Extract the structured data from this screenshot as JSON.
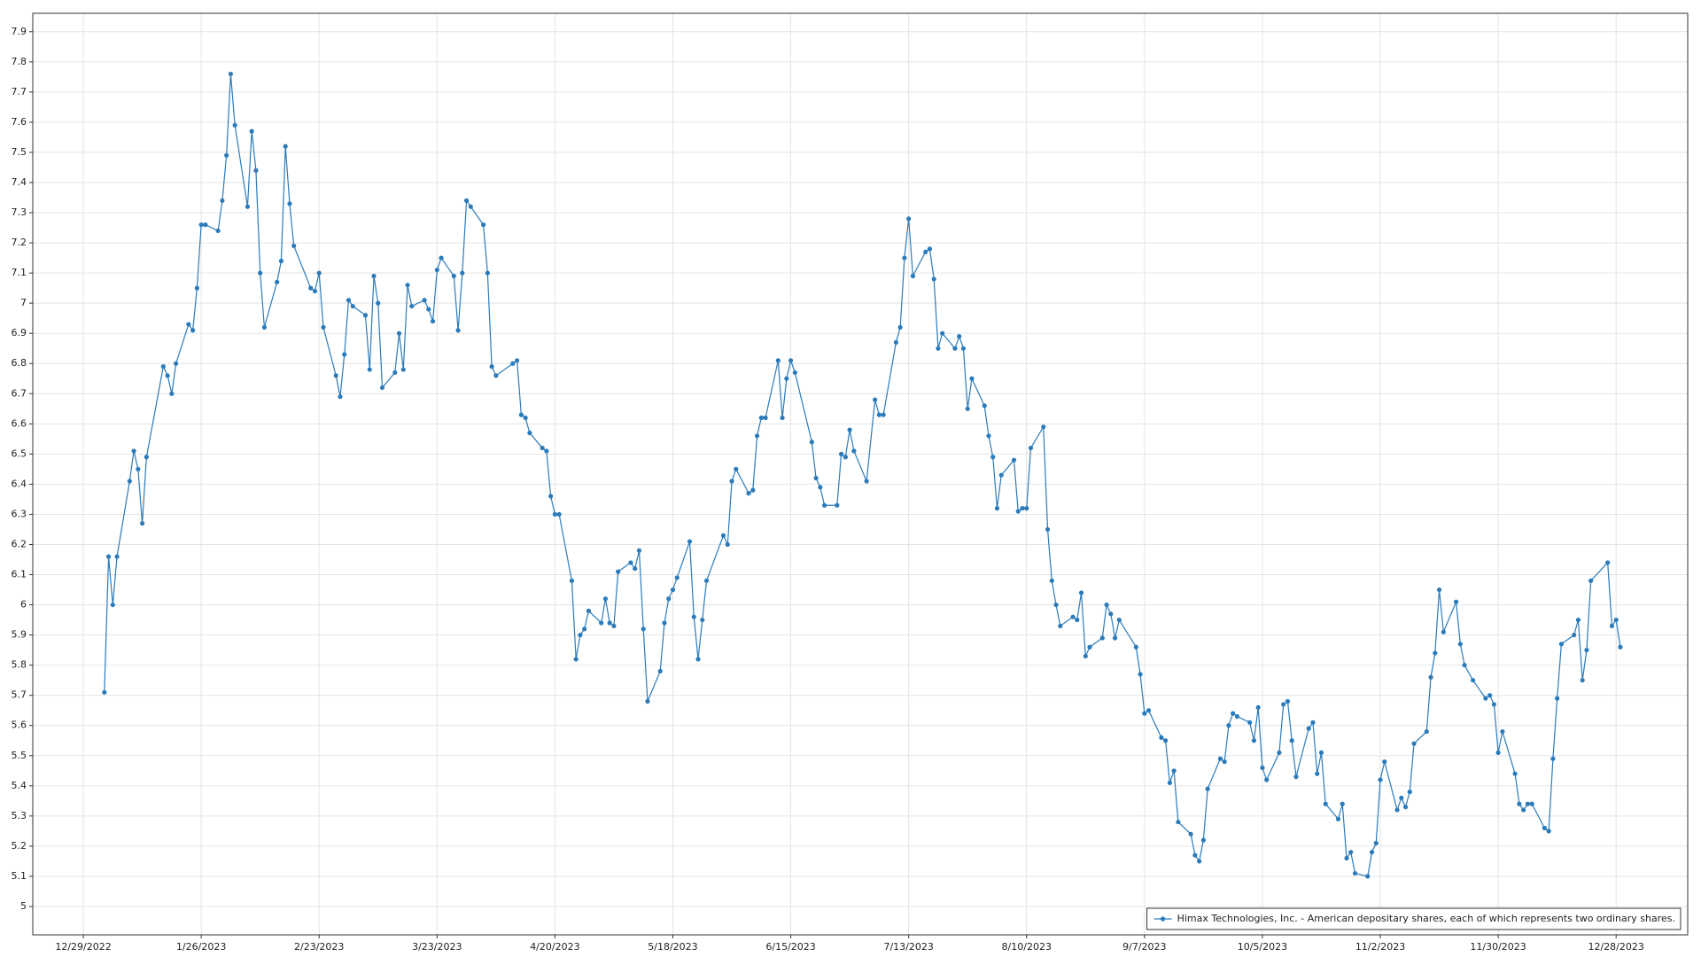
{
  "chart_data": {
    "type": "line",
    "x": [
      "1/3/2023",
      "1/4/2023",
      "1/5/2023",
      "1/6/2023",
      "1/9/2023",
      "1/10/2023",
      "1/11/2023",
      "1/12/2023",
      "1/13/2023",
      "1/17/2023",
      "1/18/2023",
      "1/19/2023",
      "1/20/2023",
      "1/23/2023",
      "1/24/2023",
      "1/25/2023",
      "1/26/2023",
      "1/27/2023",
      "1/30/2023",
      "1/31/2023",
      "2/1/2023",
      "2/2/2023",
      "2/3/2023",
      "2/6/2023",
      "2/7/2023",
      "2/8/2023",
      "2/9/2023",
      "2/10/2023",
      "2/13/2023",
      "2/14/2023",
      "2/15/2023",
      "2/16/2023",
      "2/17/2023",
      "2/21/2023",
      "2/22/2023",
      "2/23/2023",
      "2/24/2023",
      "2/27/2023",
      "2/28/2023",
      "3/1/2023",
      "3/2/2023",
      "3/3/2023",
      "3/6/2023",
      "3/7/2023",
      "3/8/2023",
      "3/9/2023",
      "3/10/2023",
      "3/13/2023",
      "3/14/2023",
      "3/15/2023",
      "3/16/2023",
      "3/17/2023",
      "3/20/2023",
      "3/21/2023",
      "3/22/2023",
      "3/23/2023",
      "3/24/2023",
      "3/27/2023",
      "3/28/2023",
      "3/29/2023",
      "3/30/2023",
      "3/31/2023",
      "4/3/2023",
      "4/4/2023",
      "4/5/2023",
      "4/6/2023",
      "4/10/2023",
      "4/11/2023",
      "4/12/2023",
      "4/13/2023",
      "4/14/2023",
      "4/17/2023",
      "4/18/2023",
      "4/19/2023",
      "4/20/2023",
      "4/21/2023",
      "4/24/2023",
      "4/25/2023",
      "4/26/2023",
      "4/27/2023",
      "4/28/2023",
      "5/1/2023",
      "5/2/2023",
      "5/3/2023",
      "5/4/2023",
      "5/5/2023",
      "5/8/2023",
      "5/9/2023",
      "5/10/2023",
      "5/11/2023",
      "5/12/2023",
      "5/15/2023",
      "5/16/2023",
      "5/17/2023",
      "5/18/2023",
      "5/19/2023",
      "5/22/2023",
      "5/23/2023",
      "5/24/2023",
      "5/25/2023",
      "5/26/2023",
      "5/30/2023",
      "5/31/2023",
      "6/1/2023",
      "6/2/2023",
      "6/5/2023",
      "6/6/2023",
      "6/7/2023",
      "6/8/2023",
      "6/9/2023",
      "6/12/2023",
      "6/13/2023",
      "6/14/2023",
      "6/15/2023",
      "6/16/2023",
      "6/20/2023",
      "6/21/2023",
      "6/22/2023",
      "6/23/2023",
      "6/26/2023",
      "6/27/2023",
      "6/28/2023",
      "6/29/2023",
      "6/30/2023",
      "7/3/2023",
      "7/5/2023",
      "7/6/2023",
      "7/7/2023",
      "7/10/2023",
      "7/11/2023",
      "7/12/2023",
      "7/13/2023",
      "7/14/2023",
      "7/17/2023",
      "7/18/2023",
      "7/19/2023",
      "7/20/2023",
      "7/21/2023",
      "7/24/2023",
      "7/25/2023",
      "7/26/2023",
      "7/27/2023",
      "7/28/2023",
      "7/31/2023",
      "8/1/2023",
      "8/2/2023",
      "8/3/2023",
      "8/4/2023",
      "8/7/2023",
      "8/8/2023",
      "8/9/2023",
      "8/10/2023",
      "8/11/2023",
      "8/14/2023",
      "8/15/2023",
      "8/16/2023",
      "8/17/2023",
      "8/18/2023",
      "8/21/2023",
      "8/22/2023",
      "8/23/2023",
      "8/24/2023",
      "8/25/2023",
      "8/28/2023",
      "8/29/2023",
      "8/30/2023",
      "8/31/2023",
      "9/1/2023",
      "9/5/2023",
      "9/6/2023",
      "9/7/2023",
      "9/8/2023",
      "9/11/2023",
      "9/12/2023",
      "9/13/2023",
      "9/14/2023",
      "9/15/2023",
      "9/18/2023",
      "9/19/2023",
      "9/20/2023",
      "9/21/2023",
      "9/22/2023",
      "9/25/2023",
      "9/26/2023",
      "9/27/2023",
      "9/28/2023",
      "9/29/2023",
      "10/2/2023",
      "10/3/2023",
      "10/4/2023",
      "10/5/2023",
      "10/6/2023",
      "10/9/2023",
      "10/10/2023",
      "10/11/2023",
      "10/12/2023",
      "10/13/2023",
      "10/16/2023",
      "10/17/2023",
      "10/18/2023",
      "10/19/2023",
      "10/20/2023",
      "10/23/2023",
      "10/24/2023",
      "10/25/2023",
      "10/26/2023",
      "10/27/2023",
      "10/30/2023",
      "10/31/2023",
      "11/1/2023",
      "11/2/2023",
      "11/3/2023",
      "11/6/2023",
      "11/7/2023",
      "11/8/2023",
      "11/9/2023",
      "11/10/2023",
      "11/13/2023",
      "11/14/2023",
      "11/15/2023",
      "11/16/2023",
      "11/17/2023",
      "11/20/2023",
      "11/21/2023",
      "11/22/2023",
      "11/24/2023",
      "11/27/2023",
      "11/28/2023",
      "11/29/2023",
      "11/30/2023",
      "12/1/2023",
      "12/4/2023",
      "12/5/2023",
      "12/6/2023",
      "12/7/2023",
      "12/8/2023",
      "12/11/2023",
      "12/12/2023",
      "12/13/2023",
      "12/14/2023",
      "12/15/2023",
      "12/18/2023",
      "12/19/2023",
      "12/20/2023",
      "12/21/2023",
      "12/22/2023",
      "12/26/2023",
      "12/27/2023",
      "12/28/2023",
      "12/29/2023"
    ],
    "series": [
      {
        "name": "Himax Technologies, Inc. - American depositary shares, each of which represents two ordinary shares.",
        "color": "#2b7bba",
        "values": [
          5.71,
          6.16,
          6.0,
          6.16,
          6.41,
          6.51,
          6.45,
          6.27,
          6.49,
          6.79,
          6.76,
          6.7,
          6.8,
          6.93,
          6.91,
          7.05,
          7.26,
          7.26,
          7.24,
          7.34,
          7.49,
          7.76,
          7.59,
          7.32,
          7.57,
          7.44,
          7.1,
          6.92,
          7.07,
          7.14,
          7.52,
          7.33,
          7.19,
          7.05,
          7.04,
          7.1,
          6.92,
          6.76,
          6.69,
          6.83,
          7.01,
          6.99,
          6.96,
          6.78,
          7.09,
          7.0,
          6.72,
          6.77,
          6.9,
          6.78,
          7.06,
          6.99,
          7.01,
          6.98,
          6.94,
          7.11,
          7.15,
          7.09,
          6.91,
          7.1,
          7.34,
          7.32,
          7.26,
          7.1,
          6.79,
          6.76,
          6.8,
          6.81,
          6.63,
          6.62,
          6.57,
          6.52,
          6.51,
          6.36,
          6.3,
          6.3,
          6.08,
          5.82,
          5.9,
          5.92,
          5.98,
          5.94,
          6.02,
          5.94,
          5.93,
          6.11,
          6.14,
          6.12,
          6.18,
          5.92,
          5.68,
          5.78,
          5.94,
          6.02,
          6.05,
          6.09,
          6.21,
          5.96,
          5.82,
          5.95,
          6.08,
          6.23,
          6.2,
          6.41,
          6.45,
          6.37,
          6.38,
          6.56,
          6.62,
          6.62,
          6.81,
          6.62,
          6.75,
          6.81,
          6.77,
          6.54,
          6.42,
          6.39,
          6.33,
          6.33,
          6.5,
          6.49,
          6.58,
          6.51,
          6.41,
          6.68,
          6.63,
          6.63,
          6.87,
          6.92,
          7.15,
          7.28,
          7.09,
          7.17,
          7.18,
          7.08,
          6.85,
          6.9,
          6.85,
          6.89,
          6.85,
          6.65,
          6.75,
          6.66,
          6.56,
          6.49,
          6.32,
          6.43,
          6.48,
          6.31,
          6.32,
          6.32,
          6.52,
          6.59,
          6.25,
          6.08,
          6.0,
          5.93,
          5.96,
          5.95,
          6.04,
          5.83,
          5.86,
          5.89,
          6.0,
          5.97,
          5.89,
          5.95,
          5.86,
          5.77,
          5.64,
          5.65,
          5.56,
          5.55,
          5.41,
          5.45,
          5.28,
          5.24,
          5.17,
          5.15,
          5.22,
          5.39,
          5.49,
          5.48,
          5.6,
          5.64,
          5.63,
          5.61,
          5.55,
          5.66,
          5.46,
          5.42,
          5.51,
          5.67,
          5.68,
          5.55,
          5.43,
          5.59,
          5.61,
          5.44,
          5.51,
          5.34,
          5.29,
          5.34,
          5.16,
          5.18,
          5.11,
          5.1,
          5.18,
          5.21,
          5.42,
          5.48,
          5.32,
          5.36,
          5.33,
          5.38,
          5.54,
          5.58,
          5.76,
          5.84,
          6.05,
          5.91,
          6.01,
          5.87,
          5.8,
          5.75,
          5.69,
          5.7,
          5.67,
          5.51,
          5.58,
          5.44,
          5.34,
          5.32,
          5.34,
          5.34,
          5.26,
          5.25,
          5.49,
          5.69,
          5.87,
          5.9,
          5.95,
          5.75,
          5.85,
          6.08,
          6.14,
          5.93,
          5.95,
          5.86
        ]
      }
    ],
    "xlim": [
      "12/17/2022",
      "1/14/2024"
    ],
    "xticks": [
      "12/29/2022",
      "1/26/2023",
      "2/23/2023",
      "3/23/2023",
      "4/20/2023",
      "5/18/2023",
      "6/15/2023",
      "7/13/2023",
      "8/10/2023",
      "9/7/2023",
      "10/5/2023",
      "11/2/2023",
      "11/30/2023",
      "12/28/2023"
    ],
    "ylim": [
      4.906,
      7.961
    ],
    "yticks": [
      5,
      5.1,
      5.2,
      5.3,
      5.4,
      5.5,
      5.6,
      5.7,
      5.8,
      5.9,
      6,
      6.1,
      6.2,
      6.3,
      6.4,
      6.5,
      6.6,
      6.7,
      6.8,
      6.9,
      7,
      7.1,
      7.2,
      7.3,
      7.4,
      7.5,
      7.6,
      7.7,
      7.8,
      7.9
    ],
    "grid": true,
    "legend": "lower right"
  }
}
